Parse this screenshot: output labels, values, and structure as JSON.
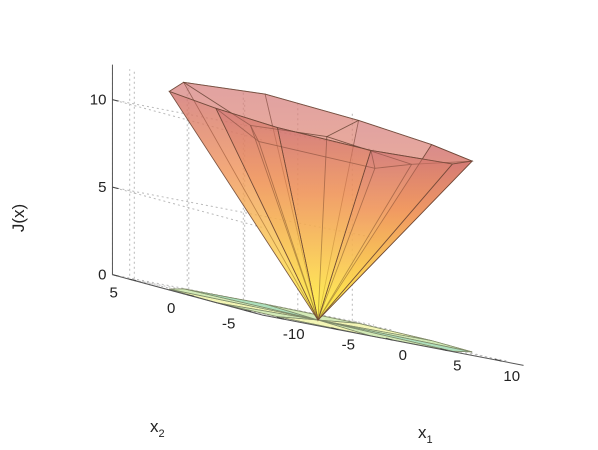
{
  "chart_data": {
    "type": "surface3d",
    "description_free": true,
    "zlabel": "J(x)",
    "xlabel_main": "x",
    "xlabel_sub": "1",
    "ylabel_main": "x",
    "ylabel_sub": "2",
    "x_ticks": [
      "-10",
      "-5",
      "0",
      "5",
      "10"
    ],
    "y_ticks": [
      "-5",
      "0",
      "5"
    ],
    "z_ticks": [
      "0",
      "5",
      "10"
    ],
    "xlim": [
      -12,
      12
    ],
    "ylim": [
      -6.5,
      6.5
    ],
    "zlim": [
      0,
      12
    ],
    "apex": [
      0,
      0,
      0
    ],
    "top_vertices": [
      [
        -12,
        -2.5,
        11.1
      ],
      [
        -11,
        2.5,
        11.3
      ],
      [
        -6,
        6,
        11.8
      ],
      [
        2,
        6.5,
        12
      ],
      [
        9,
        5,
        11.6
      ],
      [
        12,
        1.5,
        11.2
      ],
      [
        11.5,
        -2.5,
        10.9
      ],
      [
        6,
        -6,
        10.7
      ],
      [
        -2,
        -6.5,
        10.6
      ],
      [
        -9,
        -5,
        10.8
      ]
    ],
    "inner_ridge_vertices": [
      [
        -6.5,
        -1,
        9.6
      ],
      [
        -2.5,
        3.5,
        10.2
      ],
      [
        4.5,
        3.5,
        10.4
      ],
      [
        7,
        -1.5,
        10
      ],
      [
        1,
        -4,
        9.5
      ]
    ],
    "colors": {
      "top": "#d98886",
      "mid": "#f0a050",
      "bottom": "#fff23a",
      "region_light": "#f3f6b0",
      "region_green": "#b8e2b4",
      "region_teal": "#74cdbd"
    },
    "grid": true
  }
}
